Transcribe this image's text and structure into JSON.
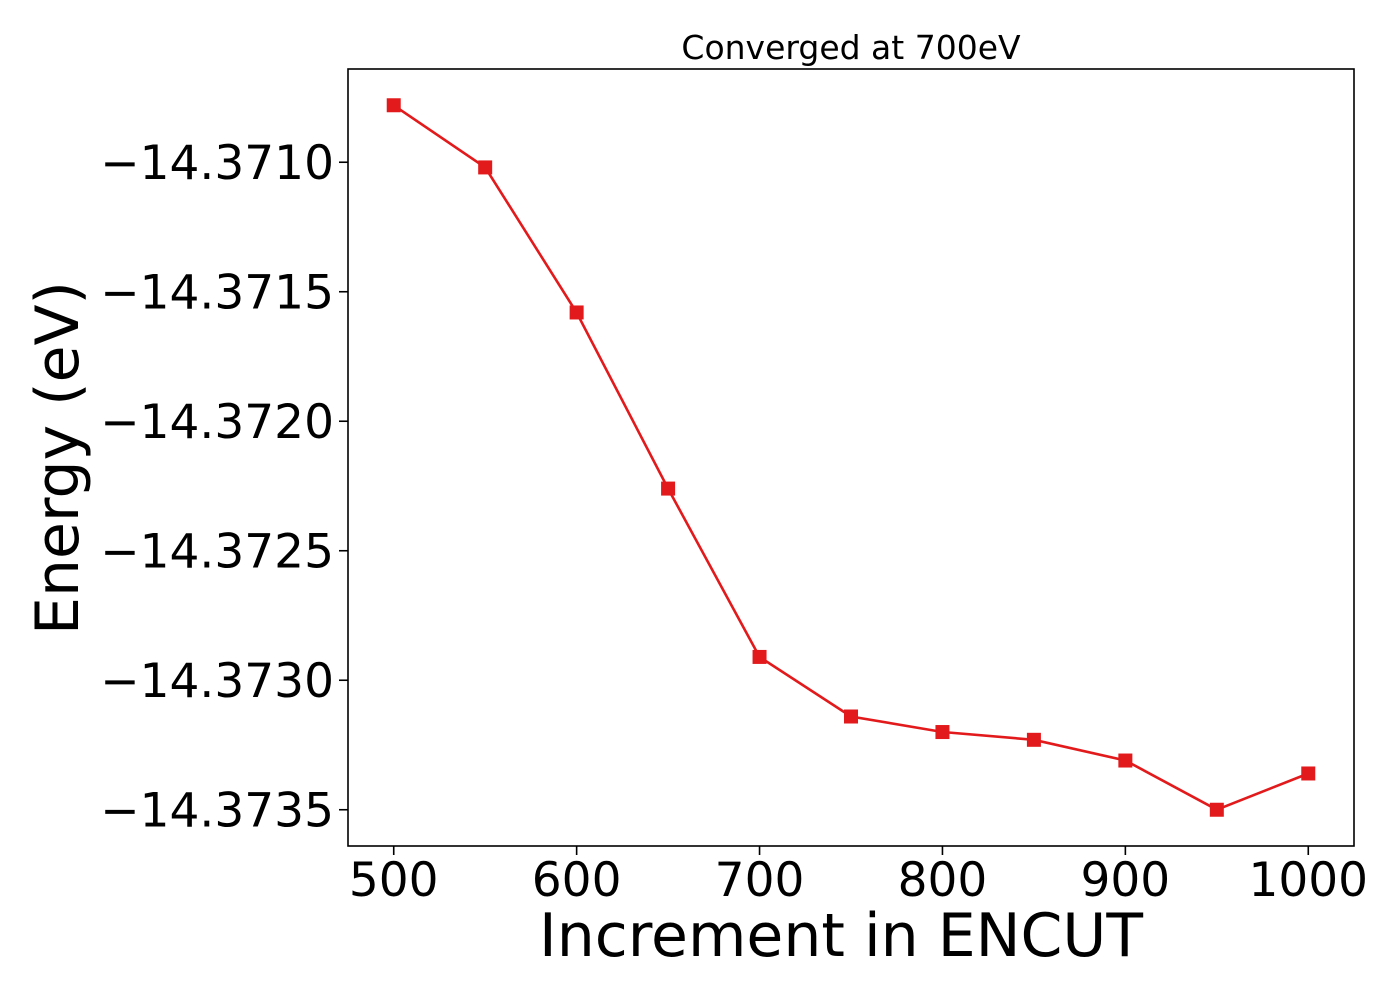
{
  "chart_data": {
    "type": "line",
    "title": "Converged at 700eV",
    "xlabel": "Increment in ENCUT",
    "ylabel": "Energy (eV)",
    "x": [
      500,
      550,
      600,
      650,
      700,
      750,
      800,
      850,
      900,
      950,
      1000
    ],
    "series": [
      {
        "color": "#e31a1c",
        "marker": "square",
        "values": [
          -14.37078,
          -14.37102,
          -14.37158,
          -14.37226,
          -14.37291,
          -14.37314,
          -14.3732,
          -14.37323,
          -14.37331,
          -14.3735,
          -14.37336
        ]
      }
    ],
    "xlim": [
      475,
      1025
    ],
    "ylim": [
      -14.37364,
      -14.37064
    ],
    "xticks": [
      500,
      600,
      700,
      800,
      900,
      1000
    ],
    "xtick_labels": [
      "500",
      "600",
      "700",
      "800",
      "900",
      "1000"
    ],
    "yticks": [
      -14.371,
      -14.3715,
      -14.372,
      -14.3725,
      -14.373,
      -14.3735
    ],
    "ytick_labels": [
      "−14.3710",
      "−14.3715",
      "−14.3720",
      "−14.3725",
      "−14.3730",
      "−14.3735"
    ],
    "grid": false,
    "legend": "none"
  }
}
